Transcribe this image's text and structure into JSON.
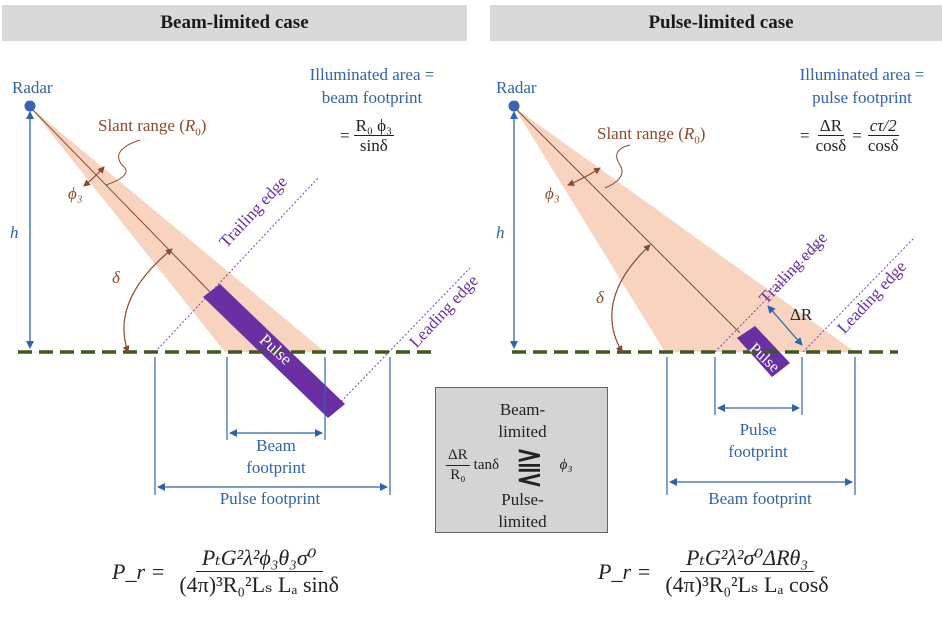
{
  "left": {
    "header": "Beam-limited case",
    "radar": "Radar",
    "illum_line1": "Illuminated area =",
    "illum_line2": "beam footprint",
    "illum_formula_prefix": "=",
    "illum_formula_num": "R₀ ϕ₃",
    "illum_formula_den": "sinδ",
    "slant_range": "Slant range (",
    "slant_var": "R",
    "slant_sub": "0",
    "slant_close": ")",
    "phi3": "ϕ₃",
    "h": "h",
    "delta": "δ",
    "trailing_edge": "Trailing edge",
    "leading_edge": "Leading edge",
    "pulse": "Pulse",
    "beam_footprint_1": "Beam",
    "beam_footprint_2": "footprint",
    "pulse_footprint": "Pulse footprint",
    "eq_lhs": "P_r =",
    "eq_num": "PₜG²λ²ϕ₃θ₃σ⁰",
    "eq_den": "(4π)³R₀²Lₛ Lₐ sinδ"
  },
  "right": {
    "header": "Pulse-limited case",
    "radar": "Radar",
    "illum_line1": "Illuminated area =",
    "illum_line2": "pulse footprint",
    "illum_eq1": "=",
    "illum_num1": "ΔR",
    "illum_den1": "cosδ",
    "illum_eq2": "=",
    "illum_num2": "cτ/2",
    "illum_den2": "cosδ",
    "slant_range": "Slant range (",
    "slant_var": "R",
    "slant_sub": "0",
    "slant_close": ")",
    "phi3": "ϕ₃",
    "h": "h",
    "delta": "δ",
    "trailing_edge": "Trailing edge",
    "leading_edge": "Leading edge",
    "delta_r": "ΔR",
    "pulse": "Pulse",
    "pulse_footprint_1": "Pulse",
    "pulse_footprint_2": "footprint",
    "beam_footprint": "Beam footprint",
    "eq_lhs": "P_r =",
    "eq_num": "PₜG²λ²σ⁰ΔRθ₃",
    "eq_den": "(4π)³R₀²Lₛ Lₐ cosδ"
  },
  "middle": {
    "top_1": "Beam-",
    "top_2": "limited",
    "frac_num": "ΔR",
    "frac_den": "R₀",
    "tan": "tanδ",
    "symbol": "⪌",
    "phi3": "ϕ₃",
    "bottom_1": "Pulse-",
    "bottom_2": "limited"
  },
  "colors": {
    "header_bg": "#d9d9d9",
    "beam_fill": "#f8d2bd",
    "pulse_fill": "#6a2fa3",
    "ground": "#3c5a1e",
    "blue": "#2f63b0",
    "brown": "#8a4a2a",
    "purple": "#6b2fa0",
    "radar_dot": "#3b62b5"
  }
}
